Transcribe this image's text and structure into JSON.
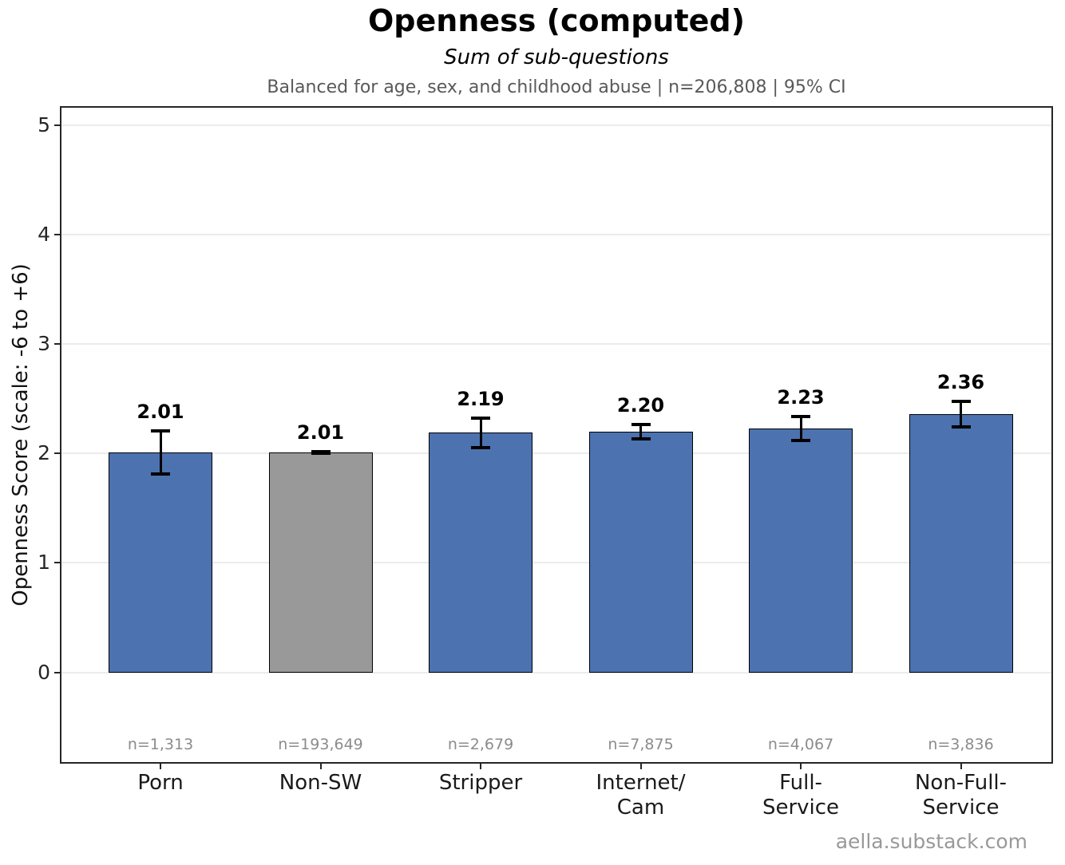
{
  "header": {
    "title": "Openness (computed)",
    "subtitle": "Sum of sub-questions",
    "meta": "Balanced for age, sex, and childhood abuse  |  n=206,808  |  95% CI"
  },
  "footer": {
    "watermark": "aella.substack.com"
  },
  "chart_data": {
    "type": "bar",
    "title": "Openness (computed)",
    "subtitle": "Sum of sub-questions",
    "note": "Balanced for age, sex, and childhood abuse | n=206,808 | 95% CI",
    "ylabel": "Openness Score (scale: -6 to +6)",
    "xlabel": "",
    "categories": [
      "Porn",
      "Non-SW",
      "Stripper",
      "Internet/\nCam",
      "Full-\nService",
      "Non-Full-\nService"
    ],
    "values": [
      2.01,
      2.01,
      2.19,
      2.2,
      2.23,
      2.36
    ],
    "value_labels": [
      "2.01",
      "2.01",
      "2.19",
      "2.20",
      "2.23",
      "2.36"
    ],
    "ci_half_widths": [
      0.2,
      0.008,
      0.135,
      0.065,
      0.11,
      0.115
    ],
    "sample_sizes": [
      "n=1,313",
      "n=193,649",
      "n=2,679",
      "n=7,875",
      "n=4,067",
      "n=3,836"
    ],
    "bar_colors": [
      "#4C72B0",
      "#999999",
      "#4C72B0",
      "#4C72B0",
      "#4C72B0",
      "#4C72B0"
    ],
    "error_bar_color": "#000000",
    "yticks": [
      0,
      1,
      2,
      3,
      4,
      5
    ],
    "ylim": [
      -0.82,
      5.16
    ],
    "grid": "horizontal",
    "legend": "none"
  }
}
